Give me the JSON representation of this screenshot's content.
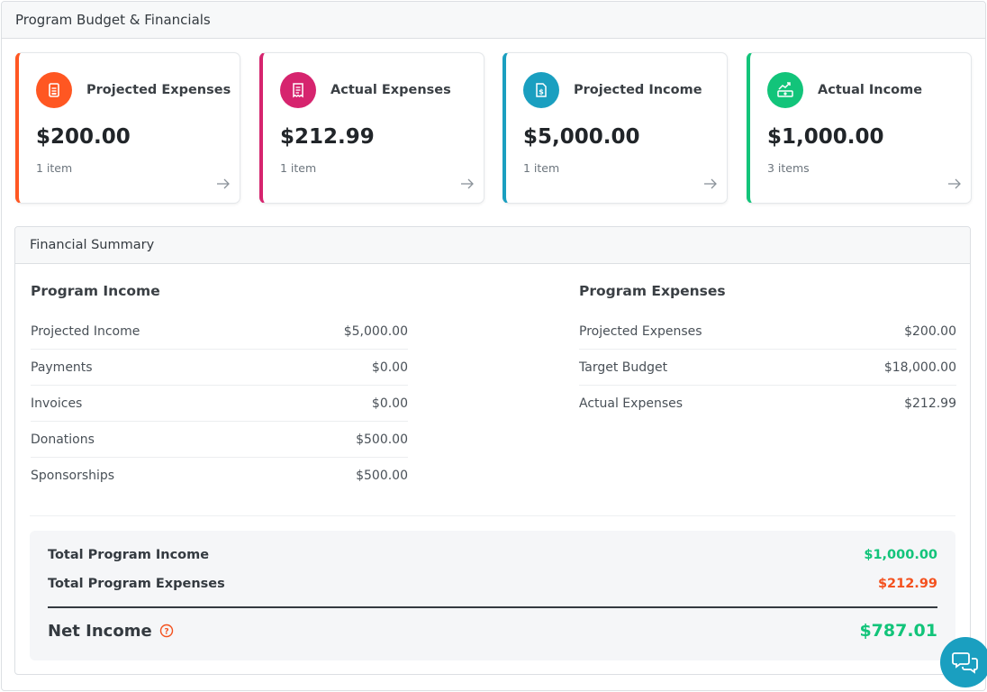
{
  "panel": {
    "title": "Program Budget & Financials"
  },
  "cards": [
    {
      "title": "Projected Expenses",
      "amount": "$200.00",
      "count": "1 item",
      "color": "#ff5722",
      "icon": "document-icon"
    },
    {
      "title": "Actual Expenses",
      "amount": "$212.99",
      "count": "1 item",
      "color": "#d6246e",
      "icon": "receipt-icon"
    },
    {
      "title": "Projected Income",
      "amount": "$5,000.00",
      "count": "1 item",
      "color": "#1a9fc0",
      "icon": "invoice-dollar-icon"
    },
    {
      "title": "Actual Income",
      "amount": "$1,000.00",
      "count": "3 items",
      "color": "#12c47a",
      "icon": "money-growth-icon"
    }
  ],
  "summary": {
    "title": "Financial Summary",
    "income": {
      "title": "Program Income",
      "rows": [
        {
          "label": "Projected Income",
          "value": "$5,000.00"
        },
        {
          "label": "Payments",
          "value": "$0.00"
        },
        {
          "label": "Invoices",
          "value": "$0.00"
        },
        {
          "label": "Donations",
          "value": "$500.00"
        },
        {
          "label": "Sponsorships",
          "value": "$500.00"
        }
      ]
    },
    "expenses": {
      "title": "Program Expenses",
      "rows": [
        {
          "label": "Projected Expenses",
          "value": "$200.00"
        },
        {
          "label": "Target Budget",
          "value": "$18,000.00"
        },
        {
          "label": "Actual Expenses",
          "value": "$212.99"
        }
      ]
    },
    "totals": {
      "income_label": "Total Program Income",
      "income_value": "$1,000.00",
      "expenses_label": "Total Program Expenses",
      "expenses_value": "$212.99",
      "net_label": "Net Income",
      "net_value": "$787.01"
    }
  },
  "colors": {
    "positive": "#12c47a",
    "negative": "#f4511e",
    "accent": "#1a9fc0"
  }
}
